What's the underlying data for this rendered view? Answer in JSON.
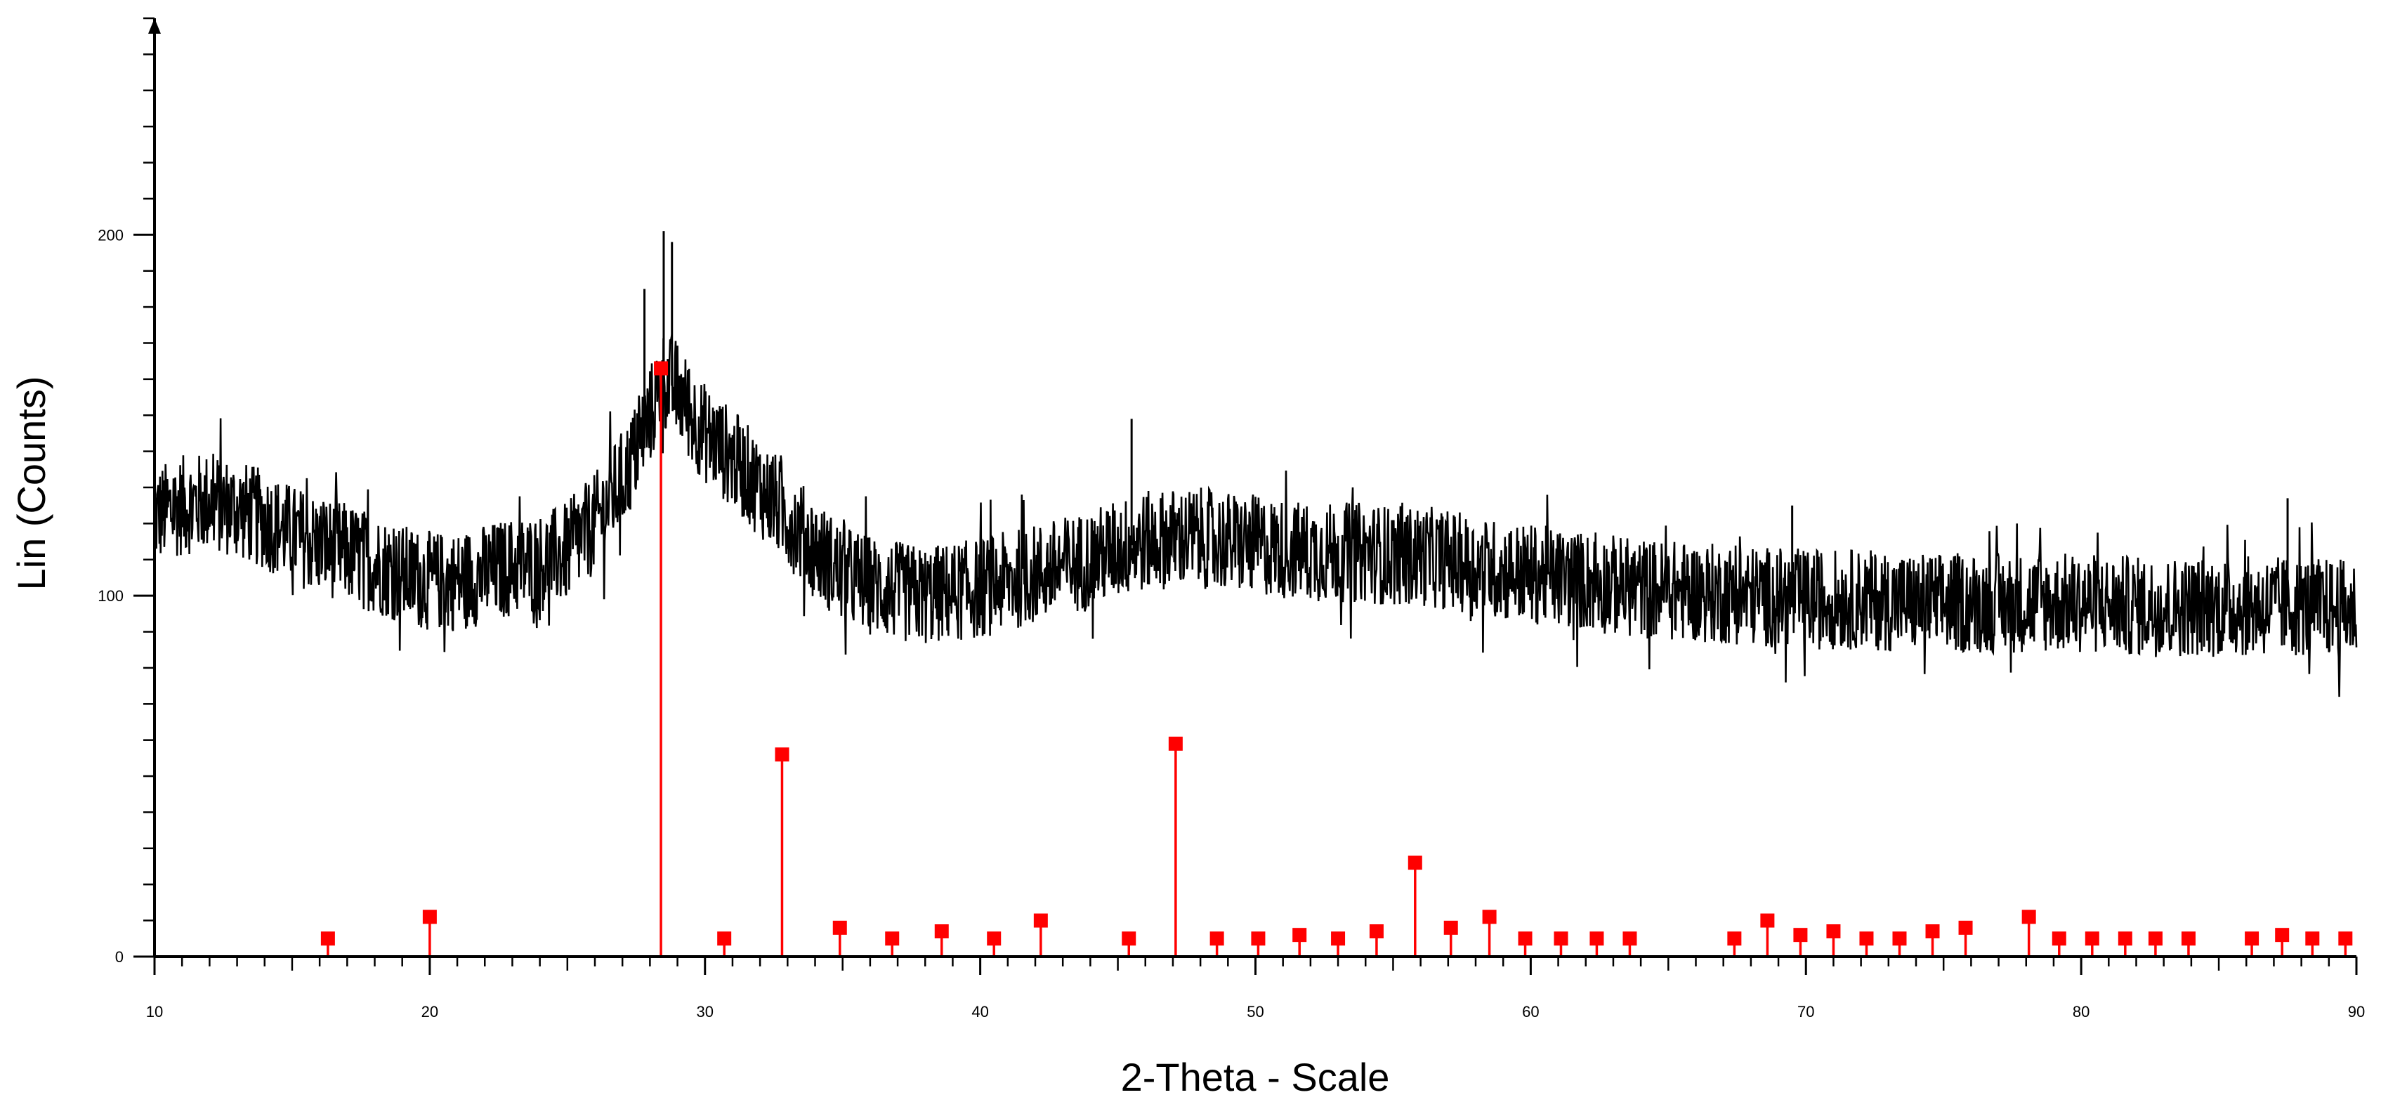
{
  "chart_data": {
    "type": "line",
    "title": "",
    "xlabel": "2-Theta - Scale",
    "ylabel": "Lin (Counts)",
    "xlim": [
      10,
      90
    ],
    "ylim": [
      0,
      260
    ],
    "grid": false,
    "x_major_ticks": [
      10,
      20,
      30,
      40,
      50,
      60,
      70,
      80,
      90
    ],
    "x_tick_labels": [
      "10",
      "20",
      "30",
      "40",
      "50",
      "60",
      "70",
      "80",
      "90"
    ],
    "y_major_ticks": [
      0,
      100,
      200
    ],
    "y_tick_labels": [
      "0",
      "100",
      "200"
    ],
    "colors": {
      "pattern": "#000000",
      "reference": "#ff0000",
      "axis": "#000000"
    },
    "series": [
      {
        "type": "line",
        "x": [
          10,
          11,
          12,
          13,
          14,
          15,
          16,
          17,
          18,
          19,
          20,
          21,
          22,
          23,
          24,
          25,
          26,
          27,
          27.5,
          28,
          28.5,
          29,
          29.5,
          30,
          31,
          32,
          33,
          34,
          35,
          36,
          37,
          38,
          39,
          40,
          41,
          42,
          43,
          44,
          45,
          46,
          47,
          48,
          49,
          50,
          51,
          52,
          53,
          54,
          55,
          56,
          57,
          58,
          59,
          60,
          62,
          64,
          66,
          68,
          70,
          72,
          74,
          76,
          78,
          80,
          82,
          84,
          86,
          88,
          90
        ],
        "y": [
          122,
          125,
          126,
          124,
          121,
          117,
          114,
          112,
          109,
          106,
          104,
          104,
          106,
          108,
          109,
          112,
          120,
          132,
          140,
          150,
          160,
          157,
          150,
          145,
          138,
          130,
          122,
          113,
          106,
          103,
          101,
          100,
          101,
          102,
          104,
          106,
          108,
          110,
          113,
          115,
          116,
          116,
          115,
          114,
          113,
          112,
          112,
          112,
          111,
          111,
          110,
          108,
          107,
          106,
          104,
          102,
          101,
          100,
          99,
          99,
          98,
          98,
          98,
          98,
          97,
          97,
          97,
          97,
          96
        ],
        "noise": 14,
        "spike_max": [
          [
            28.5,
            201
          ],
          [
            28.8,
            198
          ],
          [
            27.8,
            185
          ],
          [
            45.5,
            149
          ],
          [
            87.5,
            127
          ],
          [
            69.5,
            125
          ]
        ]
      },
      {
        "type": "stick",
        "x": [
          16.3,
          20.0,
          28.4,
          30.7,
          32.8,
          34.9,
          36.8,
          38.6,
          40.5,
          42.2,
          45.4,
          47.1,
          48.6,
          50.1,
          51.6,
          53.0,
          54.4,
          55.8,
          57.1,
          58.5,
          59.8,
          61.1,
          62.4,
          63.6,
          67.4,
          68.6,
          69.8,
          71.0,
          72.2,
          73.4,
          74.6,
          75.8,
          78.1,
          79.2,
          80.4,
          81.6,
          82.7,
          83.9,
          86.2,
          87.3,
          88.4,
          89.6
        ],
        "y": [
          5,
          11,
          163,
          5,
          56,
          8,
          5,
          7,
          5,
          10,
          5,
          59,
          5,
          5,
          6,
          5,
          7,
          26,
          8,
          11,
          5,
          5,
          5,
          5,
          5,
          10,
          6,
          7,
          5,
          5,
          7,
          8,
          11,
          5,
          5,
          5,
          5,
          5,
          5,
          6,
          5,
          5
        ]
      }
    ]
  }
}
